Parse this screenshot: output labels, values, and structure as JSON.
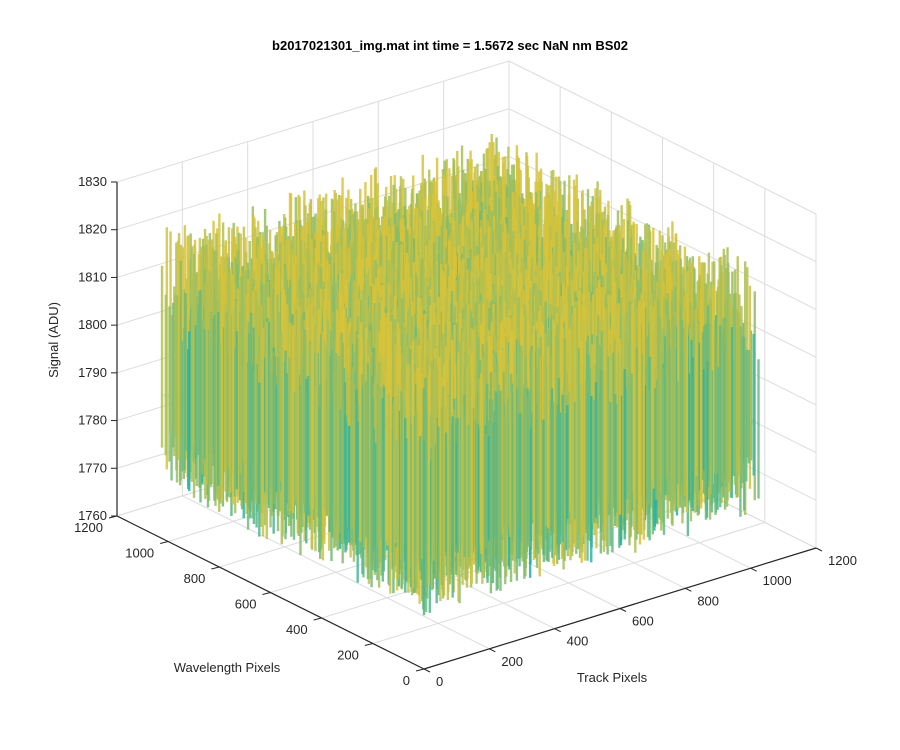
{
  "chart_data": {
    "type": "surface",
    "title": "b2017021301_img.mat int time = 1.5672 sec  NaN nm BS02",
    "xlabel": "Track Pixels",
    "ylabel": "Wavelength Pixels",
    "zlabel": "Signal (ADU)",
    "xlim": [
      0,
      1200
    ],
    "ylim": [
      0,
      1200
    ],
    "zlim": [
      1760,
      1830
    ],
    "grid": true,
    "colormap": "parula",
    "xticks": [
      0,
      200,
      400,
      600,
      800,
      1000,
      1200
    ],
    "yticks": [
      0,
      200,
      400,
      600,
      800,
      1000,
      1200
    ],
    "zticks": [
      1760,
      1770,
      1780,
      1790,
      1800,
      1810,
      1820,
      1830
    ],
    "data_extent": {
      "x": [
        0,
        1024
      ],
      "y": [
        0,
        1024
      ]
    },
    "signal_mean": 1790,
    "signal_noise_range": [
      1770,
      1825
    ],
    "colors": {
      "axis": "#262626",
      "grid": "#dcdcdc",
      "cmap_low": "#1f7fd6",
      "cmap_mid": "#20b3a8",
      "cmap_high": "#d8c33a"
    }
  }
}
